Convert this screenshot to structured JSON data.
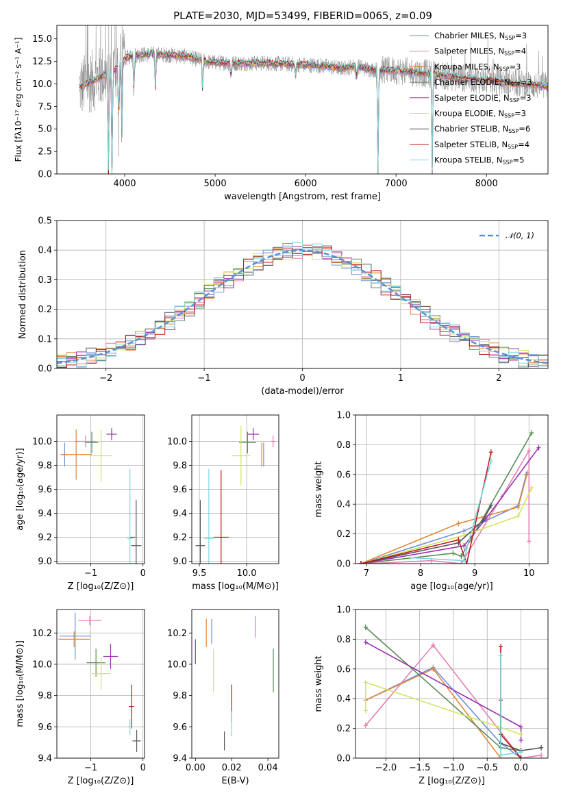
{
  "figure": {
    "title": "PLATE=2030, MJD=53499, FIBERID=0065, z=0.09"
  },
  "colors": {
    "Chabrier MILES": "#6f8fd6",
    "Salpeter MILES": "#e27fb2",
    "Kroupa MILES": "#e0873a",
    "Chabrier ELODIE": "#5a8a5a",
    "Salpeter ELODIE": "#9b2fb0",
    "Kroupa ELODIE": "#d4e45a",
    "Chabrier STELIB": "#555555",
    "Salpeter STELIB": "#c01818",
    "Kroupa STELIB": "#7ad8e0",
    "data_gray": "#8a8a8a",
    "gauss": "#5b8fd6",
    "grid": "#b0b0b0"
  },
  "chart_data": [
    {
      "id": "spectrum",
      "type": "line",
      "xlabel": "wavelength [Angstrom, rest frame]",
      "ylabel": "Flux [fλ10⁻¹⁷ erg cm⁻² s⁻¹ A⁻¹]",
      "xlim": [
        3250,
        8680
      ],
      "ylim": [
        0,
        16.5
      ],
      "xticks": [
        4000,
        5000,
        6000,
        7000,
        8000
      ],
      "yticks": [
        0.0,
        2.5,
        5.0,
        7.5,
        10.0,
        12.5,
        15.0
      ],
      "grid": false,
      "legend_position": "top-right",
      "legend": [
        {
          "label": "Chabrier MILES, N",
          "sub": "SSP",
          "suffix": "=3",
          "color_key": "Chabrier MILES"
        },
        {
          "label": "Salpeter MILES, N",
          "sub": "SSP",
          "suffix": "=4",
          "color_key": "Salpeter MILES"
        },
        {
          "label": "Kroupa MILES, N",
          "sub": "SSP",
          "suffix": "=3",
          "color_key": "Kroupa MILES"
        },
        {
          "label": "Chabrier ELODIE, N",
          "sub": "SSP",
          "suffix": "=3",
          "color_key": "Chabrier ELODIE"
        },
        {
          "label": "Salpeter ELODIE, N",
          "sub": "SSP",
          "suffix": "=3",
          "color_key": "Salpeter ELODIE"
        },
        {
          "label": "Kroupa ELODIE, N",
          "sub": "SSP",
          "suffix": "=3",
          "color_key": "Kroupa ELODIE"
        },
        {
          "label": "Chabrier STELIB, N",
          "sub": "SSP",
          "suffix": "=6",
          "color_key": "Chabrier STELIB"
        },
        {
          "label": "Salpeter STELIB, N",
          "sub": "SSP",
          "suffix": "=4",
          "color_key": "Salpeter STELIB"
        },
        {
          "label": "Kroupa STELIB, N",
          "sub": "SSP",
          "suffix": "=5",
          "color_key": "Kroupa STELIB"
        }
      ],
      "continuum": {
        "x": [
          3500,
          3700,
          3900,
          4000,
          4100,
          4300,
          4500,
          4700,
          4850,
          4950,
          5200,
          5500,
          5800,
          6000,
          6200,
          6400,
          6560,
          6700,
          7000,
          7300,
          7600,
          8000,
          8400,
          8680
        ],
        "y": [
          9.6,
          10.6,
          11.6,
          12.8,
          13.2,
          13.3,
          13.2,
          13.0,
          12.6,
          12.4,
          12.3,
          12.3,
          12.2,
          12.1,
          12.0,
          11.7,
          12.0,
          11.6,
          11.5,
          11.2,
          10.8,
          10.4,
          10.0,
          9.7
        ]
      },
      "features": [
        {
          "x": 3820,
          "y": 0.0
        },
        {
          "x": 3860,
          "y": 0.0
        },
        {
          "x": 3934,
          "y": 4.5
        },
        {
          "x": 3969,
          "y": 3.8
        },
        {
          "x": 4102,
          "y": 9.0
        },
        {
          "x": 4340,
          "y": 9.5
        },
        {
          "x": 4861,
          "y": 9.0
        },
        {
          "x": 5175,
          "y": 10.5
        },
        {
          "x": 5890,
          "y": 10.8
        },
        {
          "x": 6563,
          "y": 10.5
        },
        {
          "x": 6800,
          "y": 0.0
        },
        {
          "x": 7400,
          "y": 0.0
        }
      ]
    },
    {
      "id": "residuals",
      "type": "area",
      "xlabel": "(data-model)/error",
      "ylabel": "Normed distribution",
      "xlim": [
        -2.5,
        2.5
      ],
      "ylim": [
        0,
        0.5
      ],
      "xticks": [
        -2,
        -1,
        0,
        1,
        2
      ],
      "yticks": [
        0.0,
        0.1,
        0.2,
        0.3,
        0.4,
        0.5
      ],
      "grid": true,
      "legend_position": "top-right",
      "gaussian": {
        "name": "𝒩(0, 1)",
        "mean": 0,
        "sigma": 1
      },
      "bin_width": 0.1
    },
    {
      "id": "age_vs_Z",
      "type": "scatter",
      "xlabel": "Z [log₁₀(Z/Z⊙)]",
      "ylabel": "age  [log₁₀(age/yr)]",
      "xlim": [
        -1.65,
        0.03
      ],
      "ylim": [
        8.98,
        10.22
      ],
      "xticks": [
        -1,
        0
      ],
      "yticks": [
        9.0,
        9.2,
        9.4,
        9.6,
        9.8,
        10.0
      ],
      "grid": true,
      "points": [
        {
          "key": "Chabrier MILES",
          "x": -1.5,
          "y": 9.89,
          "xerr": 0.05,
          "yerr": 0.1
        },
        {
          "key": "Salpeter MILES",
          "x": -1.1,
          "y": 10.0,
          "xerr": 0.2,
          "yerr": 0.05
        },
        {
          "key": "Kroupa MILES",
          "x": -1.28,
          "y": 9.89,
          "xerr": 0.3,
          "yerr": 0.21
        },
        {
          "key": "Chabrier ELODIE",
          "x": -0.98,
          "y": 9.99,
          "xerr": 0.12,
          "yerr": 0.09
        },
        {
          "key": "Salpeter ELODIE",
          "x": -0.6,
          "y": 10.06,
          "xerr": 0.1,
          "yerr": 0.05
        },
        {
          "key": "Kroupa ELODIE",
          "x": -0.8,
          "y": 9.88,
          "xerr": 0.2,
          "yerr": 0.22
        },
        {
          "key": "Chabrier STELIB",
          "x": -0.13,
          "y": 9.13,
          "xerr": 0.1,
          "yerr": 0.38
        },
        {
          "key": "Salpeter STELIB",
          "x": -0.2,
          "y": 9.2,
          "xerr": 0.05,
          "yerr": 0.0
        },
        {
          "key": "Kroupa STELIB",
          "x": -0.25,
          "y": 9.19,
          "xerr": 0.05,
          "yerr": 0.58
        }
      ]
    },
    {
      "id": "age_vs_mass",
      "type": "scatter",
      "xlabel": "mass [log₁₀(M/M⊙)]",
      "ylabel": "",
      "xlim": [
        9.42,
        10.34
      ],
      "ylim": [
        8.98,
        10.22
      ],
      "xticks": [
        9.5,
        10.0
      ],
      "yticks": [
        9.0,
        9.2,
        9.4,
        9.6,
        9.8,
        10.0
      ],
      "grid": true,
      "points": [
        {
          "key": "Chabrier MILES",
          "x": 10.18,
          "y": 9.89,
          "xerr": 0.0,
          "yerr": 0.1
        },
        {
          "key": "Salpeter MILES",
          "x": 10.28,
          "y": 10.0,
          "xerr": 0.02,
          "yerr": 0.05
        },
        {
          "key": "Kroupa MILES",
          "x": 10.16,
          "y": 9.89,
          "xerr": 0.0,
          "yerr": 0.1
        },
        {
          "key": "Chabrier ELODIE",
          "x": 10.01,
          "y": 9.99,
          "xerr": 0.09,
          "yerr": 0.09
        },
        {
          "key": "Salpeter ELODIE",
          "x": 10.07,
          "y": 10.06,
          "xerr": 0.06,
          "yerr": 0.05
        },
        {
          "key": "Kroupa ELODIE",
          "x": 9.94,
          "y": 9.88,
          "xerr": 0.1,
          "yerr": 0.25
        },
        {
          "key": "Chabrier STELIB",
          "x": 9.51,
          "y": 9.13,
          "xerr": 0.05,
          "yerr": 0.38
        },
        {
          "key": "Salpeter STELIB",
          "x": 9.73,
          "y": 9.2,
          "xerr": 0.08,
          "yerr": 0.56
        },
        {
          "key": "Kroupa STELIB",
          "x": 9.6,
          "y": 9.19,
          "xerr": 0.05,
          "yerr": 0.58
        }
      ]
    },
    {
      "id": "mw_vs_age",
      "type": "line",
      "xlabel": "age  [log₁₀(age/yr)]",
      "ylabel": "mass weight",
      "xlim": [
        6.8,
        10.35
      ],
      "ylim": [
        0,
        1.0
      ],
      "xticks": [
        7,
        8,
        9,
        10
      ],
      "yticks": [
        0.0,
        0.2,
        0.4,
        0.6,
        0.8,
        1.0
      ],
      "grid": true,
      "series": [
        {
          "key": "Chabrier MILES",
          "x": [
            6.9,
            8.8,
            9.8,
            9.95
          ],
          "y": [
            0.0,
            0.22,
            0.39,
            0.6
          ]
        },
        {
          "key": "Salpeter MILES",
          "x": [
            7.0,
            8.2,
            8.75,
            9.5,
            10.0,
            10.0
          ],
          "y": [
            0.0,
            0.02,
            0.0,
            0.45,
            0.76,
            0.15
          ]
        },
        {
          "key": "Kroupa MILES",
          "x": [
            6.9,
            8.7,
            9.8,
            9.97
          ],
          "y": [
            0.0,
            0.27,
            0.38,
            0.61
          ]
        },
        {
          "key": "Chabrier ELODIE",
          "x": [
            6.9,
            8.6,
            8.75,
            10.05
          ],
          "y": [
            0.0,
            0.07,
            0.05,
            0.88
          ]
        },
        {
          "key": "Salpeter ELODIE",
          "x": [
            6.9,
            8.8,
            9.2,
            10.18
          ],
          "y": [
            0.0,
            0.12,
            0.3,
            0.78
          ]
        },
        {
          "key": "Kroupa ELODIE",
          "x": [
            6.9,
            8.8,
            9.8,
            10.05
          ],
          "y": [
            0.0,
            0.19,
            0.32,
            0.51
          ]
        },
        {
          "key": "Chabrier STELIB",
          "x": [
            6.9,
            8.7,
            9.15,
            9.3
          ],
          "y": [
            0.0,
            0.14,
            0.29,
            0.39
          ]
        },
        {
          "key": "Salpeter STELIB",
          "x": [
            6.9,
            8.7,
            8.85,
            9.3
          ],
          "y": [
            0.0,
            0.16,
            0.0,
            0.75
          ]
        },
        {
          "key": "Kroupa STELIB",
          "x": [
            7.8,
            8.8,
            8.85,
            9.3
          ],
          "y": [
            0.04,
            0.02,
            0.1,
            0.69
          ]
        }
      ]
    },
    {
      "id": "mass_vs_Z",
      "type": "scatter",
      "xlabel": "Z [log₁₀(Z/Z⊙)]",
      "ylabel": "mass [log₁₀(M/M⊙)]",
      "xlim": [
        -1.65,
        0.03
      ],
      "ylim": [
        9.4,
        10.35
      ],
      "xticks": [
        -1,
        0
      ],
      "yticks": [
        9.4,
        9.6,
        9.8,
        10.0,
        10.2
      ],
      "grid": true,
      "points": [
        {
          "key": "Chabrier MILES",
          "x": -1.3,
          "y": 10.18,
          "xerr": 0.3,
          "yerr": 0.15
        },
        {
          "key": "Salpeter MILES",
          "x": -1.02,
          "y": 10.28,
          "xerr": 0.22,
          "yerr": 0.03
        },
        {
          "key": "Kroupa MILES",
          "x": -1.32,
          "y": 10.16,
          "xerr": 0.3,
          "yerr": 0.05
        },
        {
          "key": "Chabrier ELODIE",
          "x": -0.9,
          "y": 10.01,
          "xerr": 0.18,
          "yerr": 0.09
        },
        {
          "key": "Salpeter ELODIE",
          "x": -0.62,
          "y": 10.05,
          "xerr": 0.14,
          "yerr": 0.08
        },
        {
          "key": "Kroupa ELODIE",
          "x": -0.8,
          "y": 9.94,
          "xerr": 0.18,
          "yerr": 0.1
        },
        {
          "key": "Chabrier STELIB",
          "x": -0.12,
          "y": 9.51,
          "xerr": 0.08,
          "yerr": 0.07
        },
        {
          "key": "Salpeter STELIB",
          "x": -0.22,
          "y": 9.73,
          "xerr": 0.05,
          "yerr": 0.14
        },
        {
          "key": "Kroupa STELIB",
          "x": -0.25,
          "y": 9.6,
          "xerr": 0.05,
          "yerr": 0.05
        }
      ]
    },
    {
      "id": "mass_vs_ebv",
      "type": "scatter",
      "xlabel": "E(B-V)",
      "ylabel": "",
      "xlim": [
        -0.002,
        0.046
      ],
      "ylim": [
        9.4,
        10.35
      ],
      "xticks": [
        0.0,
        0.02,
        0.04
      ],
      "yticks": [
        9.4,
        9.6,
        9.8,
        10.0,
        10.2
      ],
      "grid": false,
      "points": [
        {
          "key": "Chabrier MILES",
          "x": 0.009,
          "y": 10.21,
          "xerr": 0,
          "yerr": 0.08
        },
        {
          "key": "Salpeter MILES",
          "x": 0.033,
          "y": 10.24,
          "xerr": 0,
          "yerr": 0.07
        },
        {
          "key": "Kroupa MILES",
          "x": 0.006,
          "y": 10.2,
          "xerr": 0,
          "yerr": 0.09
        },
        {
          "key": "Chabrier ELODIE",
          "x": 0.043,
          "y": 9.96,
          "xerr": 0,
          "yerr": 0.14
        },
        {
          "key": "Salpeter ELODIE",
          "x": 0.0,
          "y": 10.08,
          "xerr": 0,
          "yerr": 0.08
        },
        {
          "key": "Kroupa ELODIE",
          "x": 0.01,
          "y": 9.96,
          "xerr": 0,
          "yerr": 0.14
        },
        {
          "key": "Chabrier STELIB",
          "x": 0.016,
          "y": 9.51,
          "xerr": 0,
          "yerr": 0.06
        },
        {
          "key": "Salpeter STELIB",
          "x": 0.02,
          "y": 9.75,
          "xerr": 0,
          "yerr": 0.12
        },
        {
          "key": "Kroupa STELIB",
          "x": 0.02,
          "y": 9.62,
          "xerr": 0,
          "yerr": 0.08
        }
      ]
    },
    {
      "id": "mw_vs_Z",
      "type": "line",
      "xlabel": "Z [log₁₀(Z/Z⊙)]",
      "ylabel": "mass weight",
      "xlim": [
        -2.45,
        0.4
      ],
      "ylim": [
        0,
        1.0
      ],
      "xticks": [
        -2.0,
        -1.5,
        -1.0,
        -0.5,
        0.0
      ],
      "yticks": [
        0.0,
        0.2,
        0.4,
        0.6,
        0.8,
        1.0
      ],
      "grid": true,
      "series": [
        {
          "key": "Chabrier MILES",
          "x": [
            -2.3,
            -1.3,
            -0.3,
            0.0
          ],
          "y": [
            0.39,
            0.61,
            0.1,
            0.0
          ]
        },
        {
          "key": "Salpeter MILES",
          "x": [
            -2.3,
            -1.3,
            0.0,
            0.3
          ],
          "y": [
            0.22,
            0.76,
            0.0,
            0.02
          ]
        },
        {
          "key": "Kroupa MILES",
          "x": [
            -2.3,
            -1.3,
            -0.3,
            0.0
          ],
          "y": [
            0.39,
            0.6,
            0.0,
            0.0
          ]
        },
        {
          "key": "Chabrier ELODIE",
          "x": [
            -2.3,
            -0.3,
            0.0
          ],
          "y": [
            0.88,
            0.07,
            0.05
          ]
        },
        {
          "key": "Salpeter ELODIE",
          "x": [
            -2.3,
            0.0,
            0.0
          ],
          "y": [
            0.78,
            0.21,
            0.12
          ]
        },
        {
          "key": "Kroupa ELODIE",
          "x": [
            -2.3,
            -2.3,
            0.0
          ],
          "y": [
            0.32,
            0.51,
            0.16
          ]
        },
        {
          "key": "Chabrier STELIB",
          "x": [
            -0.3,
            -0.3,
            0.0,
            0.3
          ],
          "y": [
            0.39,
            0.1,
            0.05,
            0.07
          ]
        },
        {
          "key": "Salpeter STELIB",
          "x": [
            -0.3,
            -0.3,
            0.0
          ],
          "y": [
            0.75,
            0.16,
            0.0
          ]
        },
        {
          "key": "Kroupa STELIB",
          "x": [
            -0.3,
            -0.3,
            0.0
          ],
          "y": [
            0.69,
            0.02,
            0.04
          ]
        }
      ]
    }
  ]
}
